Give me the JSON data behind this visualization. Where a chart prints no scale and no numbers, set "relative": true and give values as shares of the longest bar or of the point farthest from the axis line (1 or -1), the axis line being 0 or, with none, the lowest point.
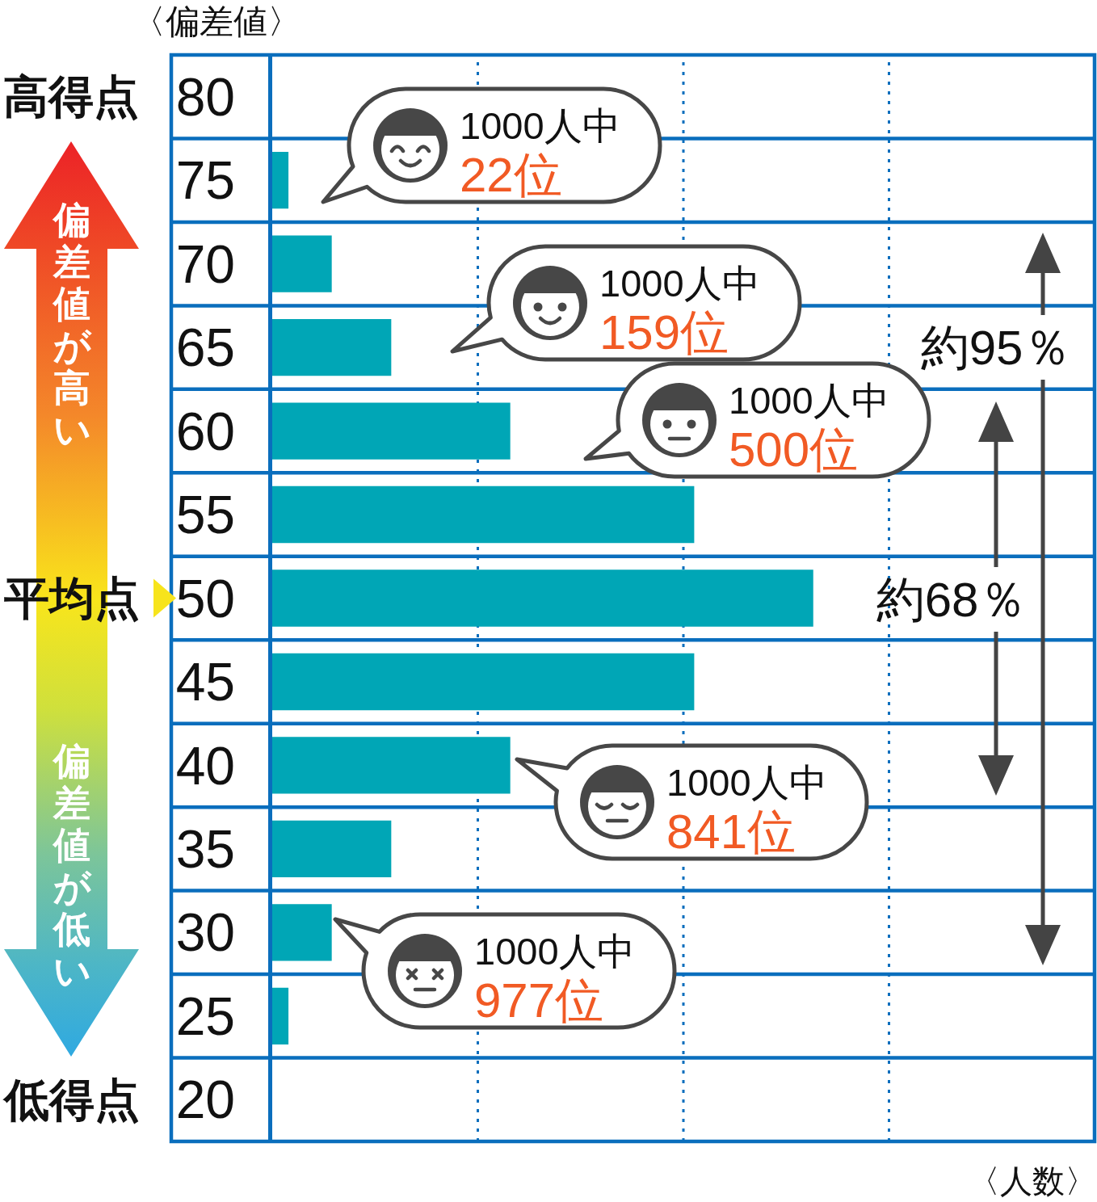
{
  "chart_data": {
    "type": "bar",
    "orientation": "horizontal",
    "relative": true,
    "ylabel": "〈偏差値〉",
    "xlabel": "〈人数〉",
    "categories": [
      "80",
      "75",
      "70",
      "65",
      "60",
      "55",
      "50",
      "45",
      "40",
      "35",
      "30",
      "25",
      "20"
    ],
    "values": [
      0,
      0.03,
      0.11,
      0.22,
      0.44,
      0.78,
      1,
      0.78,
      0.44,
      0.22,
      0.11,
      0.03,
      0
    ],
    "color": "#00a6b6",
    "grid": "y",
    "ref_lines": [
      {
        "axis": "x",
        "value": 0.38,
        "color": "#0a6ebd",
        "line_style": "dotted"
      },
      {
        "axis": "x",
        "value": 0.76,
        "color": "#0a6ebd",
        "line_style": "dotted"
      },
      {
        "axis": "x",
        "value": 1.14,
        "color": "#0a6ebd",
        "line_style": "dotted"
      }
    ],
    "annotations": [
      "高得点",
      "平均点",
      "低得点",
      "偏差値が高い",
      "偏差値が低い",
      "1000人中\n22位",
      "1000人中\n159位",
      "1000人中\n500位",
      "1000人中\n841位",
      "1000人中\n977位",
      "約95％",
      "約68％"
    ]
  }
}
